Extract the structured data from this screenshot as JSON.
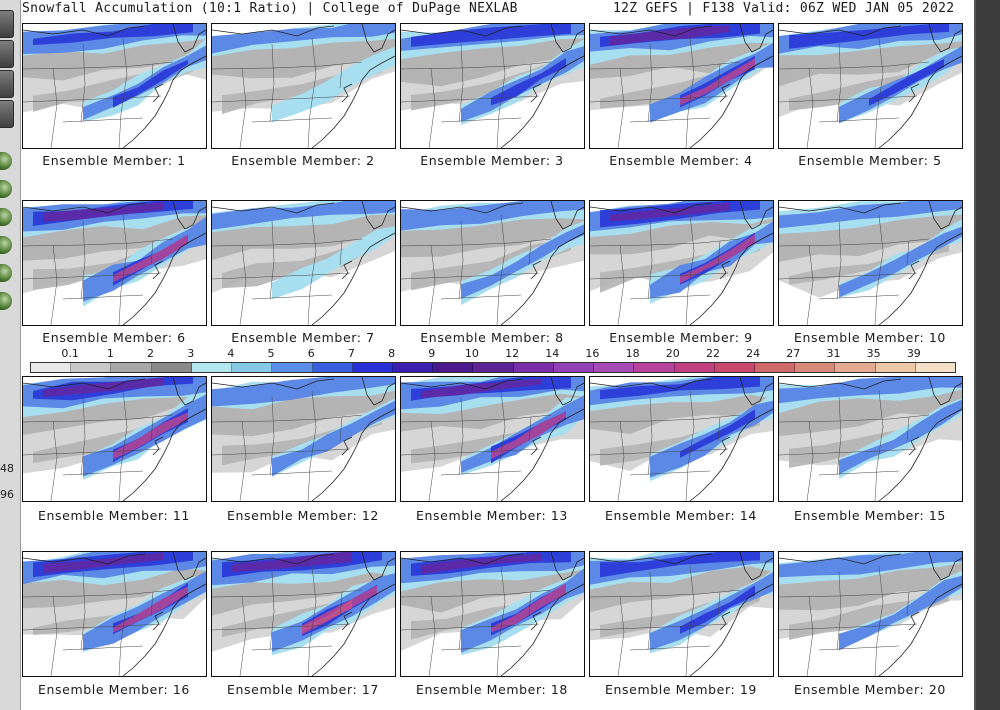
{
  "header": {
    "title_left": "Snowfall Accumulation (10:1 Ratio) | College of DuPage NEXLAB",
    "title_right": "12Z GEFS | F138 Valid: 06Z WED JAN 05 2022"
  },
  "side_numbers": [
    "48",
    "96"
  ],
  "members": [
    {
      "label": "Ensemble Member: 1",
      "intensity": 3
    },
    {
      "label": "Ensemble Member: 2",
      "intensity": 1
    },
    {
      "label": "Ensemble Member: 3",
      "intensity": 3
    },
    {
      "label": "Ensemble Member: 4",
      "intensity": 4
    },
    {
      "label": "Ensemble Member: 5",
      "intensity": 3
    },
    {
      "label": "Ensemble Member: 6",
      "intensity": 4
    },
    {
      "label": "Ensemble Member: 7",
      "intensity": 1
    },
    {
      "label": "Ensemble Member: 8",
      "intensity": 2
    },
    {
      "label": "Ensemble Member: 9",
      "intensity": 4
    },
    {
      "label": "Ensemble Member: 10",
      "intensity": 2
    },
    {
      "label": "Ensemble Member: 11",
      "intensity": 4
    },
    {
      "label": "Ensemble Member: 12",
      "intensity": 2
    },
    {
      "label": "Ensemble Member: 13",
      "intensity": 4
    },
    {
      "label": "Ensemble Member: 14",
      "intensity": 3
    },
    {
      "label": "Ensemble Member: 15",
      "intensity": 2
    },
    {
      "label": "Ensemble Member: 16",
      "intensity": 4
    },
    {
      "label": "Ensemble Member: 17",
      "intensity": 5
    },
    {
      "label": "Ensemble Member: 18",
      "intensity": 4
    },
    {
      "label": "Ensemble Member: 19",
      "intensity": 3
    },
    {
      "label": "Ensemble Member: 20",
      "intensity": 2
    }
  ],
  "colorbar": {
    "labels": [
      "0.1",
      "1",
      "2",
      "3",
      "4",
      "5",
      "6",
      "7",
      "8",
      "9",
      "10",
      "12",
      "14",
      "16",
      "18",
      "20",
      "22",
      "24",
      "27",
      "31",
      "35",
      "39"
    ],
    "colors": [
      "#e8e8e8",
      "#c8c8c8",
      "#a8a8a8",
      "#8a8a8a",
      "#b3e6ee",
      "#86c8e8",
      "#5a8ee8",
      "#3a5ee0",
      "#2b2fd6",
      "#3b1fb0",
      "#4a1a8c",
      "#5e2496",
      "#7a2fa8",
      "#9240b8",
      "#a64ab6",
      "#b8439c",
      "#c23f82",
      "#c8476c",
      "#d06a6a",
      "#d88a7a",
      "#e4aa92",
      "#edc8a8",
      "#f4e0c8"
    ]
  }
}
